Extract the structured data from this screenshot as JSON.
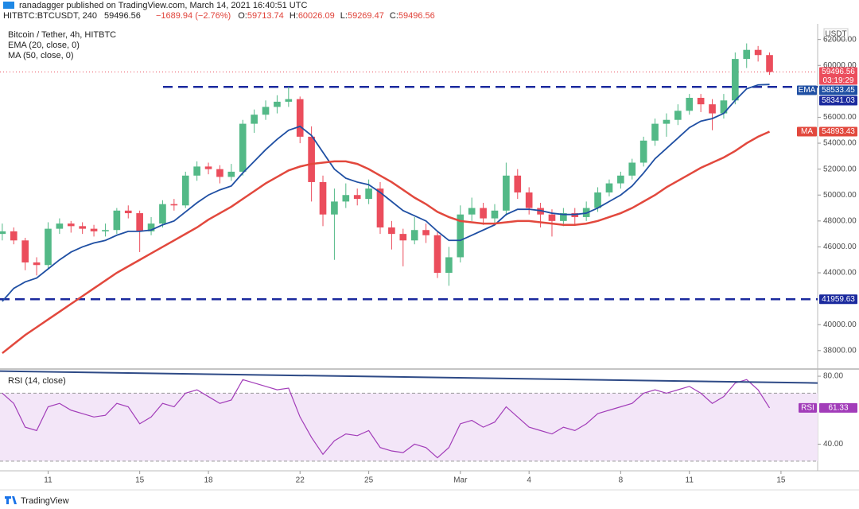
{
  "header": {
    "publisher": "ranadagger published on TradingView.com, March 14, 2021 16:40:51 UTC",
    "symbol": "HITBTC:BTCUSDT, 240",
    "last": "59496.56",
    "change": "−1689.94 (−2.76%)",
    "ohlc": [
      {
        "label": "O:",
        "value": "59713.74"
      },
      {
        "label": "H:",
        "value": "60026.09"
      },
      {
        "label": "L:",
        "value": "59269.47"
      },
      {
        "label": "C:",
        "value": "59496.56"
      }
    ]
  },
  "footer": "TradingView",
  "chart_data": [
    {
      "type": "candlestick",
      "title": "Bitcoin / Tether, 4h, HITBTC",
      "currency": "USDT",
      "countdown": "03:19:29",
      "up_color": "#53b987",
      "down_color": "#eb4d5c",
      "open": [
        47000,
        47200,
        46500,
        44800,
        44600,
        47400,
        47800,
        47600,
        47400,
        47200,
        47300,
        48800,
        48600,
        47200,
        47800,
        49300,
        49200,
        51500,
        52200,
        52000,
        51400,
        51800,
        55500,
        56200,
        56800,
        57200,
        57400,
        54500,
        51000,
        48500,
        49500,
        50000,
        49700,
        50500,
        47500,
        47000,
        46500,
        47300,
        46900,
        44000,
        45200,
        48500,
        49000,
        48200,
        48800,
        51500,
        50200,
        49000,
        48500,
        48000,
        48600,
        48300,
        49000,
        50200,
        50900,
        51500,
        52500,
        54200,
        55500,
        55800,
        56500,
        57500,
        57000,
        56300,
        57300,
        60500,
        61200,
        60800
      ],
      "high": [
        47800,
        47500,
        46700,
        45200,
        47900,
        48200,
        48000,
        47900,
        47700,
        47800,
        49000,
        49200,
        48800,
        48300,
        49600,
        49700,
        51800,
        52600,
        52500,
        52300,
        52400,
        55800,
        56600,
        57300,
        57700,
        58350,
        57600,
        55300,
        51500,
        50500,
        50900,
        50500,
        51200,
        51000,
        48000,
        47400,
        48300,
        47800,
        47200,
        46000,
        49200,
        49800,
        49400,
        49300,
        52500,
        52000,
        50600,
        49400,
        48900,
        49000,
        49000,
        49500,
        50600,
        51200,
        51800,
        52800,
        54500,
        55900,
        56300,
        57000,
        57800,
        57800,
        57400,
        57800,
        61000,
        61700,
        61500,
        61000
      ],
      "low": [
        46500,
        46200,
        44200,
        43800,
        44300,
        47000,
        47100,
        47000,
        46800,
        46800,
        47000,
        48200,
        45600,
        46900,
        47500,
        48800,
        49000,
        51100,
        51600,
        50900,
        51100,
        51500,
        54800,
        55800,
        56300,
        56800,
        54000,
        49500,
        47600,
        45000,
        49000,
        49200,
        49300,
        47000,
        45800,
        44500,
        46200,
        46300,
        43600,
        43000,
        44800,
        48000,
        47700,
        47800,
        48400,
        49700,
        48500,
        47500,
        46800,
        47600,
        47700,
        48000,
        48700,
        49900,
        50500,
        51200,
        52200,
        53800,
        54500,
        55400,
        56200,
        56400,
        55000,
        55900,
        57000,
        59800,
        60300,
        59270
      ],
      "close": [
        47200,
        46500,
        44800,
        44600,
        47400,
        47800,
        47600,
        47400,
        47200,
        47300,
        48800,
        48600,
        47200,
        47800,
        49300,
        49200,
        51500,
        52200,
        52000,
        51400,
        51800,
        55500,
        56200,
        56800,
        57200,
        57400,
        54500,
        51000,
        48500,
        49500,
        50000,
        49700,
        50500,
        47500,
        47000,
        46500,
        47300,
        46900,
        44000,
        45200,
        48500,
        49000,
        48200,
        48800,
        51500,
        50200,
        49000,
        48500,
        48000,
        48600,
        48300,
        49000,
        50200,
        50900,
        51500,
        52500,
        54200,
        55500,
        55800,
        56500,
        57500,
        57000,
        56300,
        57300,
        60500,
        61200,
        60800,
        59496.56
      ],
      "series": [
        {
          "name": "EMA (20, close, 0)",
          "tag": "EMA",
          "color": "#1f4fa3",
          "values": [
            41800,
            42800,
            43300,
            43600,
            44300,
            45000,
            45600,
            46000,
            46300,
            46500,
            46900,
            47200,
            47200,
            47300,
            47700,
            48000,
            48700,
            49400,
            50000,
            50400,
            50700,
            51700,
            52600,
            53500,
            54300,
            55000,
            55300,
            54600,
            53300,
            52000,
            51300,
            51000,
            50800,
            50200,
            49500,
            48800,
            48400,
            48000,
            47200,
            46500,
            46500,
            46900,
            47300,
            47700,
            48500,
            48900,
            48900,
            48800,
            48600,
            48500,
            48500,
            48600,
            49000,
            49500,
            50000,
            50700,
            51700,
            52800,
            53600,
            54400,
            55200,
            55700,
            55900,
            56300,
            57300,
            58200,
            58500,
            58533.45
          ]
        },
        {
          "name": "MA (50, close, 0)",
          "tag": "MA",
          "color": "#e2483d",
          "values": [
            37800,
            38500,
            39200,
            39800,
            40400,
            41000,
            41600,
            42200,
            42800,
            43400,
            44000,
            44500,
            45000,
            45500,
            46000,
            46500,
            47000,
            47500,
            48100,
            48600,
            49100,
            49700,
            50300,
            50900,
            51400,
            51900,
            52200,
            52400,
            52500,
            52600,
            52600,
            52400,
            52000,
            51500,
            51000,
            50400,
            49800,
            49300,
            48700,
            48300,
            48000,
            47900,
            47800,
            47800,
            47900,
            48000,
            48000,
            47900,
            47800,
            47700,
            47700,
            47800,
            48000,
            48300,
            48600,
            49000,
            49500,
            50000,
            50600,
            51100,
            51600,
            52100,
            52500,
            52900,
            53400,
            54000,
            54500,
            54893.43
          ]
        }
      ],
      "resistance": 58341.03,
      "support": 41959.63,
      "level_color": "#1b2a9e",
      "xlim": [
        -0.2,
        71.2
      ],
      "xticks": [
        {
          "value": 4,
          "label": "11"
        },
        {
          "value": 12,
          "label": "15"
        },
        {
          "value": 18,
          "label": "18"
        },
        {
          "value": 26,
          "label": "22"
        },
        {
          "value": 32,
          "label": "25"
        },
        {
          "value": 40,
          "label": "Mar"
        },
        {
          "value": 46,
          "label": "4"
        },
        {
          "value": 54,
          "label": "8"
        },
        {
          "value": 60,
          "label": "11"
        },
        {
          "value": 68,
          "label": "15"
        }
      ],
      "ylim": [
        36700,
        62900
      ],
      "yticks": [
        {
          "value": 62000,
          "label": "62000.00"
        },
        {
          "value": 60000,
          "label": "60000.00"
        },
        {
          "value": 56000,
          "label": "56000.00"
        },
        {
          "value": 54000,
          "label": "54000.00"
        },
        {
          "value": 52000,
          "label": "52000.00"
        },
        {
          "value": 50000,
          "label": "50000.00"
        },
        {
          "value": 48000,
          "label": "48000.00"
        },
        {
          "value": 46000,
          "label": "46000.00"
        },
        {
          "value": 44000,
          "label": "44000.00"
        },
        {
          "value": 40000,
          "label": "40000.00"
        },
        {
          "value": 38000,
          "label": "38000.00"
        }
      ]
    },
    {
      "type": "line",
      "title": "RSI (14, close)",
      "tag": "RSI",
      "color": "#a23db9",
      "band_color": "#f3e6f8",
      "values": [
        70,
        64,
        50,
        48,
        62,
        64,
        60,
        58,
        56,
        57,
        64,
        62,
        52,
        56,
        64,
        62,
        70,
        72,
        68,
        64,
        66,
        78,
        76,
        74,
        72,
        73,
        56,
        44,
        34,
        42,
        46,
        45,
        48,
        38,
        36,
        35,
        40,
        38,
        32,
        38,
        52,
        54,
        50,
        53,
        62,
        56,
        50,
        48,
        46,
        50,
        48,
        52,
        58,
        60,
        62,
        64,
        70,
        72,
        70,
        72,
        74,
        70,
        64,
        68,
        76,
        78,
        72,
        61.33
      ],
      "bands": [
        30,
        70
      ],
      "trendline": [
        83,
        76
      ],
      "trendline_color": "#2e4a86",
      "ylim": [
        24.3,
        83.3
      ],
      "yticks": [
        {
          "value": 80,
          "label": "80.00"
        },
        {
          "value": 40,
          "label": "40.00"
        }
      ]
    }
  ]
}
